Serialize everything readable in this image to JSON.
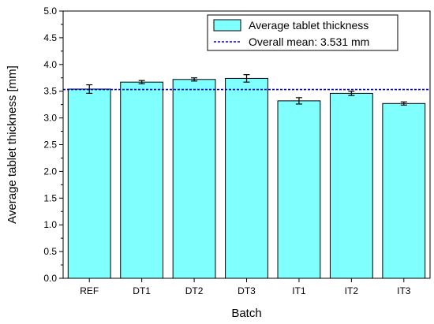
{
  "chart_data": {
    "type": "bar",
    "xlabel": "Batch",
    "ylabel": "Average tablet thickness [mm]",
    "categories": [
      "REF",
      "DT1",
      "DT2",
      "DT3",
      "IT1",
      "IT2",
      "IT3"
    ],
    "series": [
      {
        "name": "Average tablet thickness",
        "values": [
          3.54,
          3.67,
          3.72,
          3.74,
          3.32,
          3.46,
          3.27
        ],
        "errors": [
          0.08,
          0.03,
          0.03,
          0.07,
          0.06,
          0.04,
          0.03
        ],
        "color": "#80ffff"
      }
    ],
    "reference_line": {
      "label": "Overall mean: 3.531 mm",
      "value": 3.531,
      "color": "#0000cc",
      "style": "dashed"
    },
    "ylim": [
      0.0,
      5.0
    ],
    "yticks": [
      "0.0",
      "0.5",
      "1.0",
      "1.5",
      "2.0",
      "2.5",
      "3.0",
      "3.5",
      "4.0",
      "4.5",
      "5.0"
    ],
    "grid": false,
    "legend": "top-right"
  }
}
